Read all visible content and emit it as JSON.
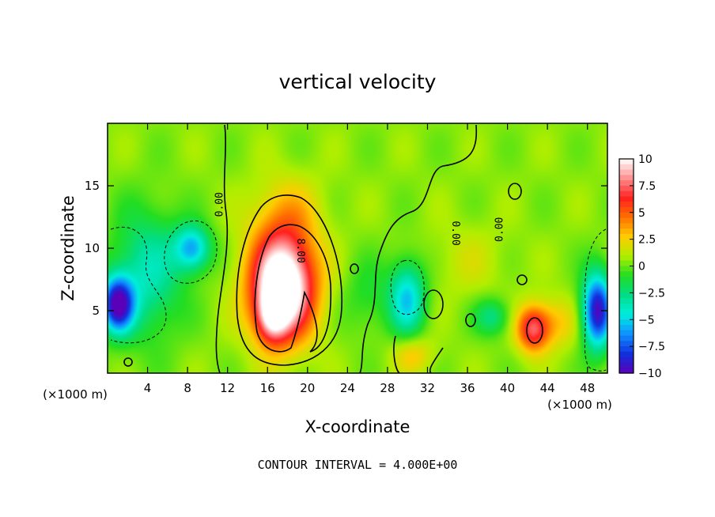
{
  "chart_data": {
    "type": "heatmap",
    "title": "vertical velocity",
    "xlabel": "X-coordinate",
    "ylabel": "Z-coordinate",
    "x_unit": "(×1000 m)",
    "xlim": [
      0,
      50
    ],
    "ylim": [
      0,
      20
    ],
    "x_ticks": [
      4,
      8,
      12,
      16,
      20,
      24,
      28,
      32,
      36,
      40,
      44,
      48
    ],
    "x_tick_labels": [
      "4",
      "8",
      "12",
      "16",
      "20",
      "24",
      "28",
      "32",
      "36",
      "40",
      "44",
      "48"
    ],
    "y_ticks": [
      5,
      10,
      15
    ],
    "y_tick_labels": [
      "5",
      "10",
      "15"
    ],
    "colorbar": {
      "min": -10,
      "max": 10,
      "ticks": [
        10,
        7.5,
        5,
        2.5,
        0,
        -2.5,
        -5,
        -7.5,
        -10
      ],
      "tick_labels": [
        "10",
        "7.5",
        "5",
        "2.5",
        "0",
        "−2.5",
        "−5",
        "−7.5",
        "−10"
      ],
      "colors": [
        "#ffffff",
        "#ff9090",
        "#ff2020",
        "#ff7000",
        "#ffcc00",
        "#b0ee00",
        "#22dd22",
        "#00dd88",
        "#00eedd",
        "#1090ff",
        "#1030dd",
        "#5a00b8"
      ]
    },
    "contour_labels": [
      "0.00",
      "0.00",
      "8.00",
      "0.00",
      "0.00"
    ],
    "footer": "CONTOUR INTERVAL = 4.000E+00",
    "features": [
      {
        "x": 17.5,
        "z": 7.0,
        "sx": 3.2,
        "sz": 4.2,
        "w": 13
      },
      {
        "x": 16.5,
        "z": 4.5,
        "sx": 1.5,
        "sz": 2.0,
        "w": 5
      },
      {
        "x": 18.0,
        "z": 13.0,
        "sx": 3.5,
        "sz": 3.0,
        "w": 2
      },
      {
        "x": 1.0,
        "z": 5.5,
        "sx": 1.6,
        "sz": 2.2,
        "w": -10
      },
      {
        "x": 4.0,
        "z": 8.0,
        "sx": 3.5,
        "sz": 5.0,
        "w": -4
      },
      {
        "x": 8.5,
        "z": 10.0,
        "sx": 1.8,
        "sz": 1.8,
        "w": -6
      },
      {
        "x": 30.0,
        "z": 6.0,
        "sx": 1.8,
        "sz": 3.0,
        "w": -5.5
      },
      {
        "x": 30.5,
        "z": 1.5,
        "sx": 2.0,
        "sz": 1.5,
        "w": 2.5
      },
      {
        "x": 42.5,
        "z": 3.5,
        "sx": 1.6,
        "sz": 1.8,
        "w": 6
      },
      {
        "x": 44.5,
        "z": 4.0,
        "sx": 2.5,
        "sz": 2.0,
        "w": 2.5
      },
      {
        "x": 49.0,
        "z": 5.0,
        "sx": 1.5,
        "sz": 3.0,
        "w": -10
      },
      {
        "x": 38.5,
        "z": 4.5,
        "sx": 1.8,
        "sz": 1.5,
        "w": -3
      },
      {
        "x": 36.0,
        "z": 9.0,
        "sx": 4.0,
        "sz": 3.0,
        "w": 1
      },
      {
        "x": 26.0,
        "z": 6.0,
        "sx": 2.5,
        "sz": 3.0,
        "w": -1.5
      }
    ]
  }
}
